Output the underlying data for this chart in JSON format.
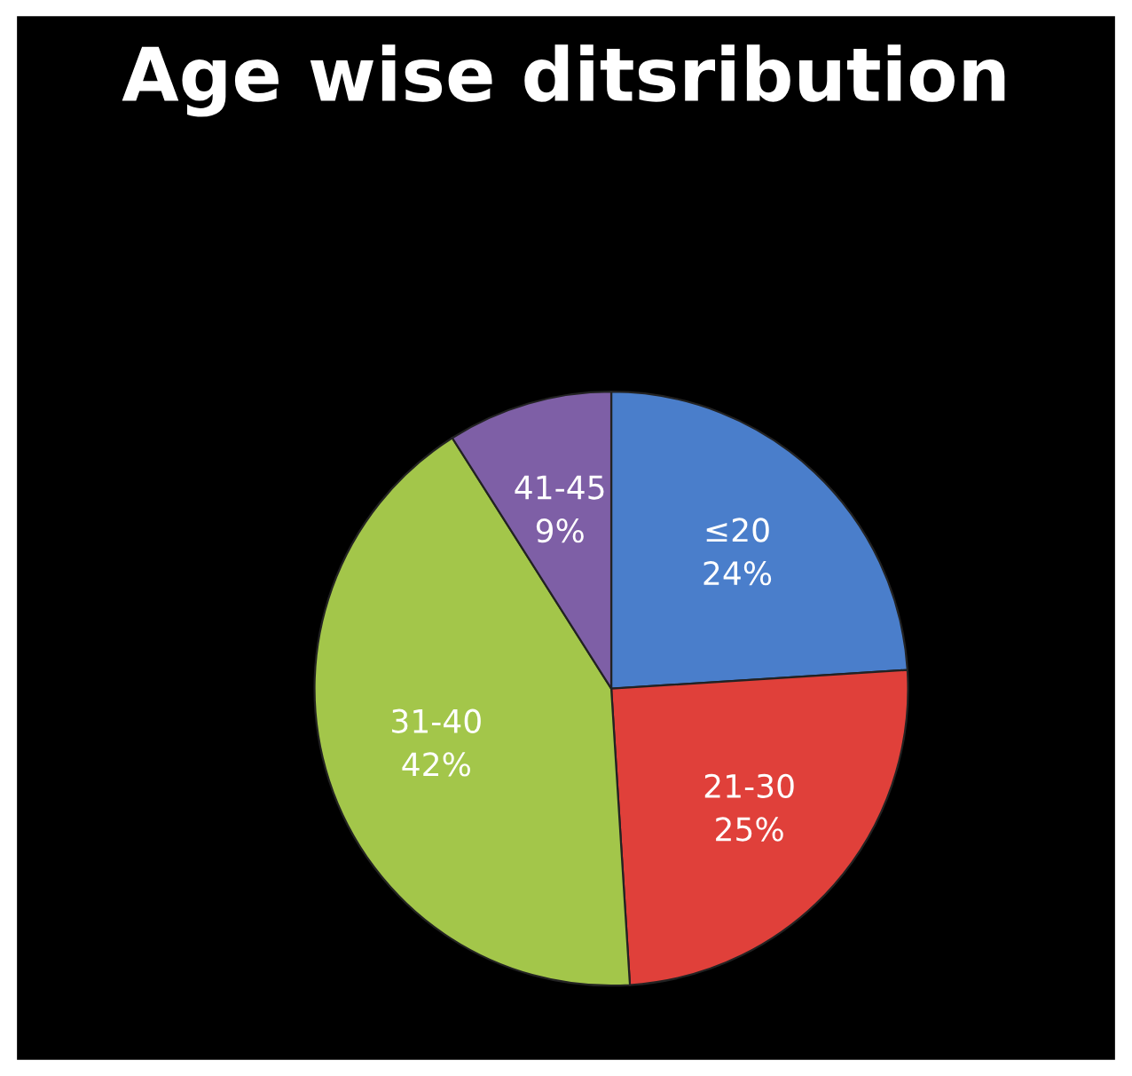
{
  "chart_data": {
    "type": "pie",
    "title": "Age wise ditsribution",
    "categories": [
      "≤20",
      "21-30",
      "31-40",
      "41-45"
    ],
    "values": [
      24,
      25,
      42,
      9
    ],
    "value_labels": [
      "24%",
      "25%",
      "42%",
      "9%"
    ],
    "colors": [
      "#4a7ecb",
      "#e0403a",
      "#a3c64a",
      "#7e5fa6"
    ],
    "legend": false
  }
}
